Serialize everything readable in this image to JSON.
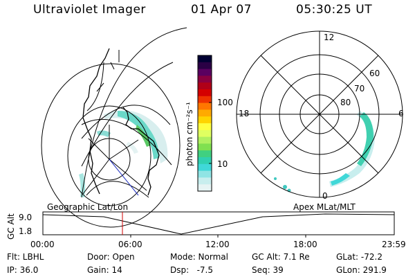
{
  "header": {
    "instrument": "Ultraviolet Imager",
    "date": "01 Apr 07",
    "time": "05:30:25 UT"
  },
  "colorbar": {
    "unit_label": "photon cm⁻²s⁻¹",
    "tick_labels": [
      "100",
      "10"
    ],
    "colors": [
      "#000033",
      "#2a0045",
      "#5a0060",
      "#8a0040",
      "#b00018",
      "#d40000",
      "#ee3300",
      "#ff7700",
      "#ffaa00",
      "#ffd400",
      "#ffff40",
      "#e0ff60",
      "#b0f060",
      "#80e050",
      "#40d080",
      "#30d0b0",
      "#40d8d8",
      "#90e4e4",
      "#c8eeee",
      "#e6f4f4"
    ]
  },
  "polar_plot": {
    "mlt_labels": {
      "top": "12",
      "left": "18",
      "right": "6",
      "bottom": "0"
    },
    "lat_labels": [
      "60",
      "70",
      "80"
    ]
  },
  "timeline": {
    "y_label": "GC Alt",
    "y_ticks": [
      "9.0",
      "1.8"
    ],
    "left_title": "Geographic Lat/Lon",
    "right_title": "Apex MLat/MLT",
    "x_ticks": [
      "00:00",
      "06:00",
      "12:00",
      "18:00",
      "23:59"
    ]
  },
  "footer": {
    "flt": "Flt: LBHL",
    "ip": "IP: 36.0",
    "door": "Door: Open",
    "gain": "Gain: 14",
    "mode": "Mode: Normal",
    "dsp": "Dsp:   -7.5",
    "gc_alt": "GC Alt: 7.1 Re",
    "seq": "Seq: 39",
    "glat": "GLat: -72.2",
    "glon": "GLon: 291.9"
  }
}
